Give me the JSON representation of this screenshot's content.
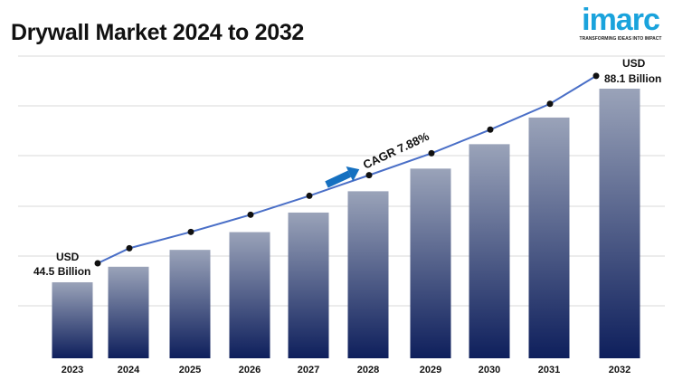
{
  "title": "Drywall Market 2024 to 2032",
  "logo": {
    "word": "imarc",
    "tagline": "TRANSFORMING IDEAS INTO IMPACT"
  },
  "chart_data": {
    "type": "bar",
    "title": "Drywall Market 2024 to 2032",
    "categories": [
      "2023",
      "2024",
      "2025",
      "2026",
      "2027",
      "2028",
      "2029",
      "2030",
      "2031",
      "2032"
    ],
    "values": [
      44.5,
      48.0,
      51.8,
      55.8,
      60.2,
      65.0,
      70.1,
      75.6,
      81.6,
      88.1
    ],
    "unit": "USD Billion",
    "xlabel": "",
    "ylabel": "",
    "grid": true,
    "annotations": {
      "start_line1": "USD",
      "start_line2": "44.5 Billion",
      "end_line1": "USD",
      "end_line2": "88.1 Billion",
      "cagr": "CAGR 7.88%"
    },
    "colors": {
      "bar_top": "#9aa3b9",
      "bar_bottom": "#0e1f5c",
      "line": "#4a6fc7",
      "arrow": "#1570c0"
    }
  }
}
